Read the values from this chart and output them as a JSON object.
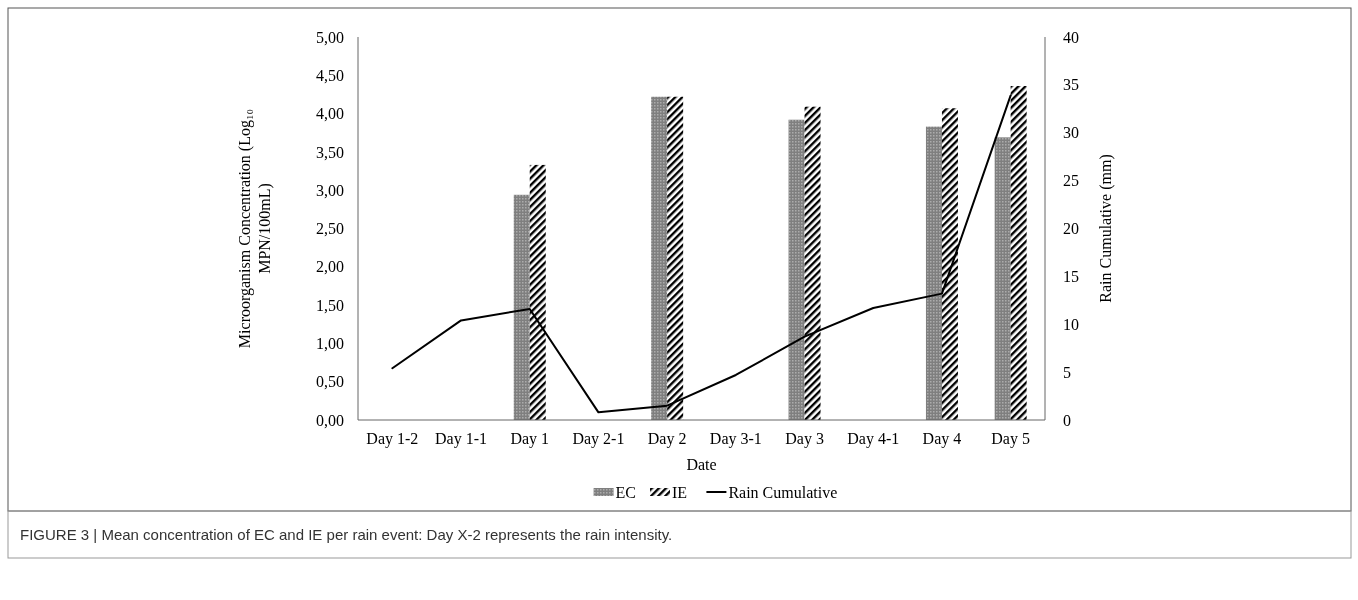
{
  "chart_data": {
    "type": "bar",
    "xlabel": "Date",
    "ylabel": "Microorganism Concentration (Log₁₀ MPN/100mL)",
    "y2label": "Rain Cumulative (mm)",
    "categories": [
      "Day 1-2",
      "Day 1-1",
      "Day 1",
      "Day 2-1",
      "Day 2",
      "Day 3-1",
      "Day 3",
      "Day 4-1",
      "Day 4",
      "Day 5"
    ],
    "series": [
      {
        "name": "EC",
        "color": "#7f7f7f",
        "values": [
          null,
          null,
          2.94,
          null,
          4.22,
          null,
          3.92,
          null,
          3.83,
          3.69
        ]
      },
      {
        "name": "IE",
        "color": "#000000",
        "values": [
          null,
          null,
          3.33,
          null,
          4.22,
          null,
          4.09,
          null,
          4.07,
          4.36
        ]
      },
      {
        "name": "Rain Cumulative",
        "type": "line",
        "axis": "y2",
        "color": "#000000",
        "values": [
          5.4,
          10.4,
          11.6,
          0.8,
          1.5,
          4.7,
          8.7,
          11.7,
          13.2,
          33.9
        ]
      }
    ],
    "ylim": [
      0,
      5
    ],
    "yticks": [
      {
        "value": 0,
        "label": "0,00"
      },
      {
        "value": 0.5,
        "label": "0,50"
      },
      {
        "value": 1,
        "label": "1,00"
      },
      {
        "value": 1.5,
        "label": "1,50"
      },
      {
        "value": 2,
        "label": "2,00"
      },
      {
        "value": 2.5,
        "label": "2,50"
      },
      {
        "value": 3,
        "label": "3,00"
      },
      {
        "value": 3.5,
        "label": "3,50"
      },
      {
        "value": 4,
        "label": "4,00"
      },
      {
        "value": 4.5,
        "label": "4,50"
      },
      {
        "value": 5,
        "label": "5,00"
      }
    ],
    "y2lim": [
      0,
      40
    ],
    "y2ticks": [
      0,
      5,
      10,
      15,
      20,
      25,
      30,
      35,
      40
    ],
    "legend": "bottom",
    "grid": false,
    "annotations": [
      "FIGURE 3 | Mean concentration of EC and IE per rain event: Day X-2 represents the rain intensity."
    ]
  }
}
